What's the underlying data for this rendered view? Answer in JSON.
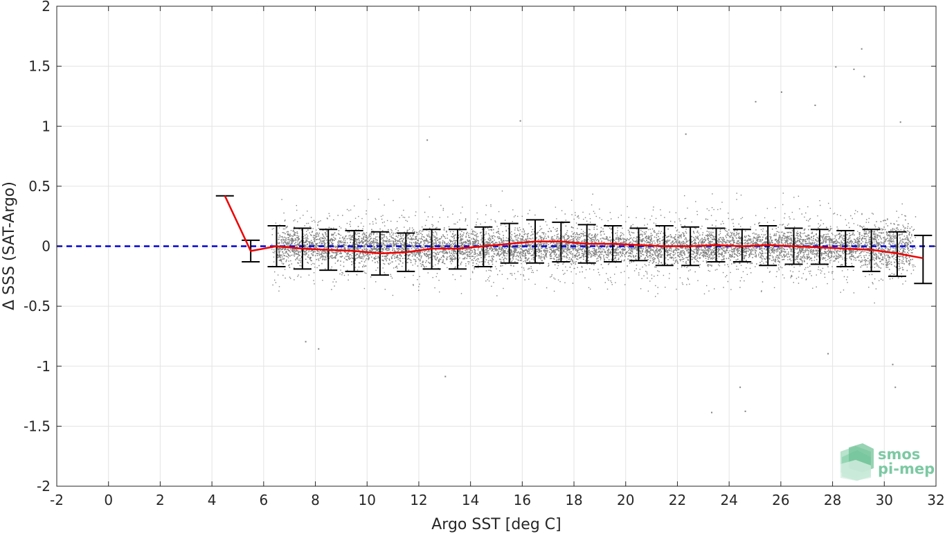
{
  "chart_data": {
    "type": "scatter",
    "title": "",
    "xlabel": "Argo SST [deg C]",
    "ylabel": "Δ SSS (SAT-Argo)",
    "xlim": [
      -2,
      32
    ],
    "ylim": [
      -2,
      2
    ],
    "x_ticks": [
      -2,
      0,
      2,
      4,
      6,
      8,
      10,
      12,
      14,
      16,
      18,
      20,
      22,
      24,
      26,
      28,
      30,
      32
    ],
    "y_ticks": [
      2,
      1.5,
      1,
      0.5,
      0,
      -0.5,
      -1,
      -1.5,
      -2
    ],
    "y_tick_labels": [
      "2",
      "1.5",
      "1",
      "0.5",
      "0",
      "-0.5",
      "-1",
      "-1.5",
      "-2"
    ],
    "grid": true,
    "reference_line": {
      "y": 0,
      "style": "dashed",
      "color": "#0000dd"
    },
    "scatter_cloud": {
      "color": "#808080",
      "x_range": [
        5.5,
        31.5
      ],
      "core_y_range": [
        -0.3,
        0.3
      ],
      "outliers": [
        {
          "x": 13.0,
          "y": -1.08
        },
        {
          "x": 23.3,
          "y": -1.38
        },
        {
          "x": 24.6,
          "y": -1.37
        },
        {
          "x": 24.4,
          "y": -1.17
        },
        {
          "x": 30.4,
          "y": -1.17
        },
        {
          "x": 29.1,
          "y": 1.65
        },
        {
          "x": 28.1,
          "y": 1.5
        },
        {
          "x": 28.8,
          "y": 1.48
        },
        {
          "x": 29.2,
          "y": 1.42
        },
        {
          "x": 26.0,
          "y": 1.29
        },
        {
          "x": 15.9,
          "y": 1.05
        },
        {
          "x": 25.0,
          "y": 1.21
        },
        {
          "x": 27.3,
          "y": 1.18
        },
        {
          "x": 8.1,
          "y": -0.85
        },
        {
          "x": 7.6,
          "y": -0.79
        },
        {
          "x": 27.8,
          "y": -0.89
        },
        {
          "x": 30.3,
          "y": -0.98
        },
        {
          "x": 12.3,
          "y": 0.89
        },
        {
          "x": 30.6,
          "y": 1.04
        },
        {
          "x": 22.3,
          "y": 0.94
        }
      ]
    },
    "mean_line": {
      "color": "#ee0000",
      "x": [
        4.5,
        5.5,
        6.5,
        7.5,
        8.5,
        9.5,
        10.5,
        11.5,
        12.5,
        13.5,
        14.5,
        15.5,
        16.5,
        17.5,
        18.5,
        19.5,
        20.5,
        21.5,
        22.5,
        23.5,
        24.5,
        25.5,
        26.5,
        27.5,
        28.5,
        29.5,
        30.5,
        31.5
      ],
      "y": [
        0.42,
        -0.04,
        0.0,
        -0.02,
        -0.03,
        -0.04,
        -0.06,
        -0.05,
        -0.02,
        -0.02,
        0.0,
        0.02,
        0.04,
        0.04,
        0.02,
        0.02,
        0.01,
        0.0,
        0.0,
        0.01,
        0.0,
        0.01,
        0.0,
        -0.01,
        -0.02,
        -0.03,
        -0.06,
        -0.1
      ]
    },
    "error_bars": {
      "color": "#000000",
      "x": [
        5.5,
        6.5,
        7.5,
        8.5,
        9.5,
        10.5,
        11.5,
        12.5,
        13.5,
        14.5,
        15.5,
        16.5,
        17.5,
        18.5,
        19.5,
        20.5,
        21.5,
        22.5,
        23.5,
        24.5,
        25.5,
        26.5,
        27.5,
        28.5,
        29.5,
        30.5,
        31.5
      ],
      "low": [
        -0.13,
        -0.17,
        -0.19,
        -0.2,
        -0.21,
        -0.24,
        -0.21,
        -0.19,
        -0.19,
        -0.17,
        -0.14,
        -0.14,
        -0.13,
        -0.14,
        -0.13,
        -0.12,
        -0.16,
        -0.16,
        -0.13,
        -0.13,
        -0.16,
        -0.15,
        -0.15,
        -0.17,
        -0.21,
        -0.25,
        -0.31
      ],
      "high": [
        0.05,
        0.17,
        0.15,
        0.14,
        0.13,
        0.12,
        0.11,
        0.14,
        0.14,
        0.16,
        0.19,
        0.22,
        0.2,
        0.18,
        0.17,
        0.15,
        0.17,
        0.16,
        0.15,
        0.14,
        0.17,
        0.15,
        0.14,
        0.13,
        0.14,
        0.12,
        0.09
      ],
      "single_cap": {
        "x": 4.5,
        "y": 0.42
      }
    }
  },
  "logo": {
    "line1": "smos",
    "line2": "pi-mep"
  }
}
